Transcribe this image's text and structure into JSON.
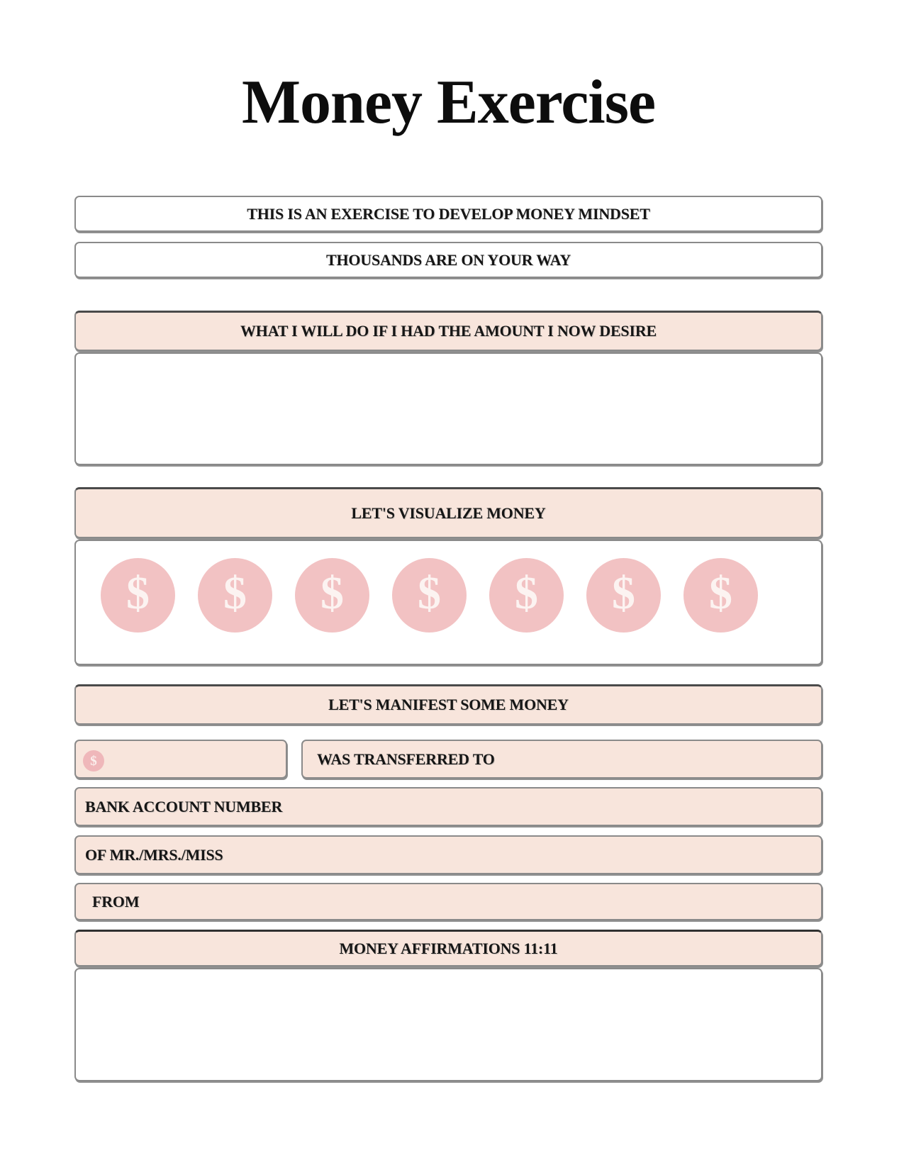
{
  "page": {
    "title": "Money Exercise"
  },
  "intro_boxes": [
    {
      "text": "THIS IS AN EXERCISE TO DEVELOP MONEY MINDSET"
    },
    {
      "text": "THOUSANDS ARE ON YOUR WAY"
    }
  ],
  "desire": {
    "header": "WHAT I WILL DO IF I HAD THE AMOUNT I NOW DESIRE",
    "body_value": ""
  },
  "visualize": {
    "header": "LET'S VISUALIZE MONEY",
    "dollar": "$",
    "icon_count": 7
  },
  "manifest": {
    "header": "LET'S MANIFEST SOME MONEY",
    "amount": {
      "icon": "$",
      "value": ""
    },
    "transfer_label": "WAS TRANSFERRED TO",
    "bank_label": "BANK ACCOUNT NUMBER",
    "name_label": "OF MR./MRS./MISS",
    "from_label": "FROM"
  },
  "affirmations": {
    "header": "MONEY AFFIRMATIONS 11:11",
    "body_value": ""
  },
  "colors": {
    "header_bg": "#f8e5dc",
    "circle_pink": "#f2c2c3",
    "border_gray": "#8a8a8a"
  }
}
